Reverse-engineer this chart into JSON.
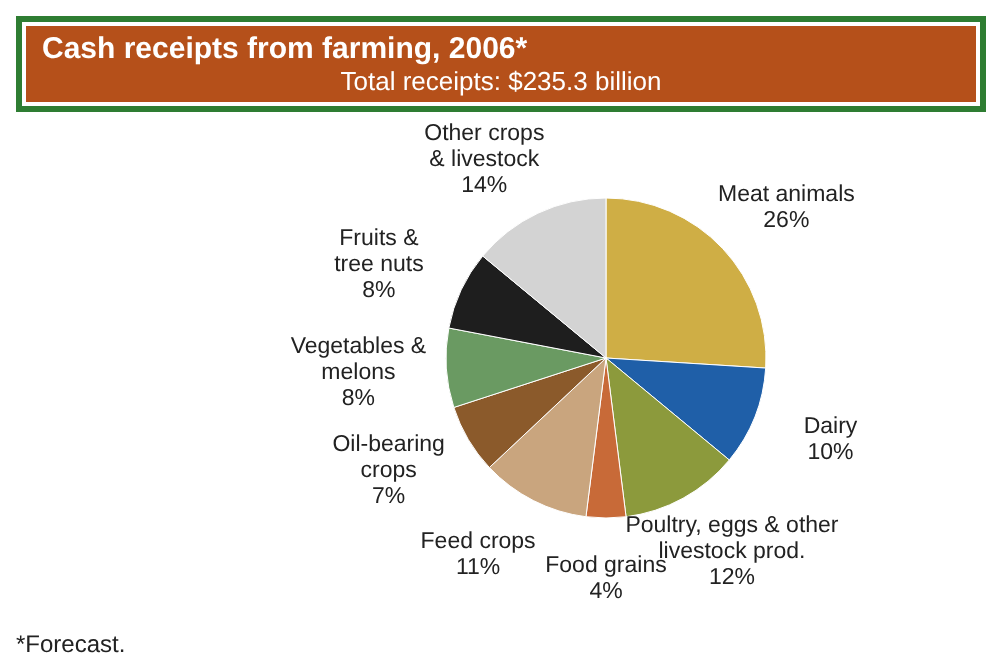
{
  "chart_data": {
    "type": "pie",
    "title": "Cash receipts from farming, 2006*",
    "subtitle": "Total receipts:  $235.3 billion",
    "categories": [
      "Meat animals",
      "Dairy",
      "Poultry, eggs & other livestock prod.",
      "Food grains",
      "Feed crops",
      "Oil-bearing crops",
      "Vegetables & melons",
      "Fruits & tree nuts",
      "Other crops & livestock"
    ],
    "values": [
      26,
      10,
      12,
      4,
      11,
      7,
      8,
      8,
      14
    ],
    "value_labels": [
      "26%",
      "10%",
      "12%",
      "4%",
      "11%",
      "7%",
      "8%",
      "8%",
      "14%"
    ],
    "colors": [
      "#cfae45",
      "#1f5fa8",
      "#8c9a3c",
      "#c86a38",
      "#c9a57e",
      "#8b5a2b",
      "#6a9a62",
      "#1e1e1e",
      "#d3d3d3"
    ],
    "annotations": [
      "*Forecast."
    ],
    "legend": false
  }
}
